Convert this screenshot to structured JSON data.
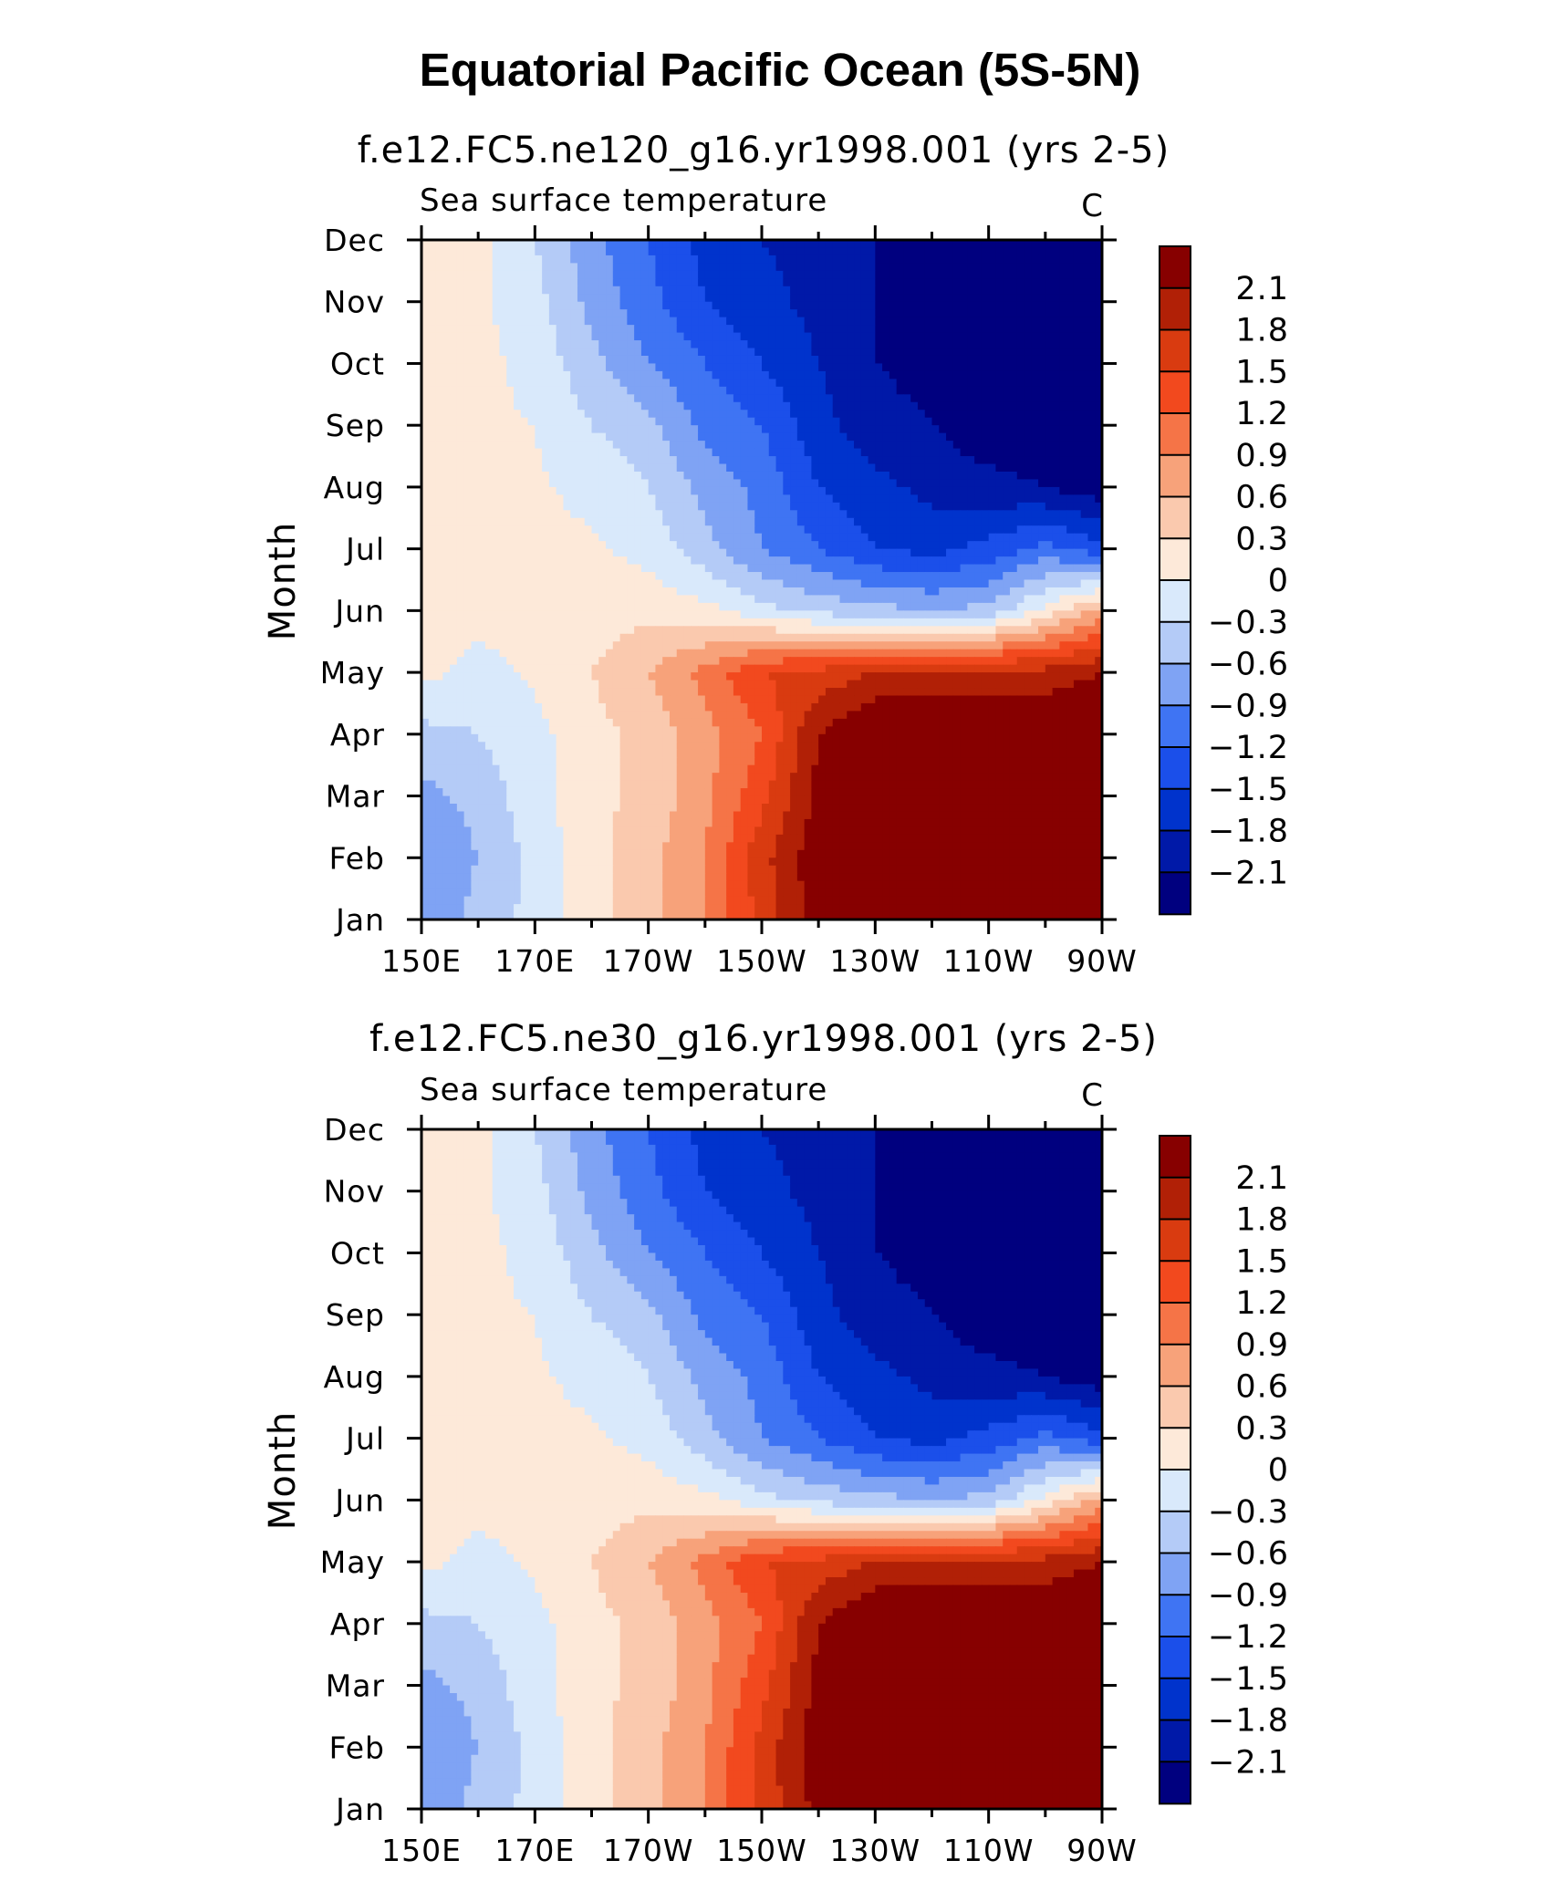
{
  "title": "Equatorial Pacific Ocean (5S-5N)",
  "colors": {
    "contour_fills": [
      "#00007f",
      "#0019a8",
      "#0033cc",
      "#1b4fea",
      "#3f74f3",
      "#7fa3f4",
      "#b4cbf7",
      "#d9e9fb",
      "#fde9d9",
      "#fac9ae",
      "#f7a27a",
      "#f57447",
      "#f2491e",
      "#d93b10",
      "#b12006",
      "#870000"
    ]
  },
  "chart_data": [
    {
      "type": "heatmap",
      "title": "f.e12.FC5.ne120_g16.yr1998.001 (yrs 2-5)",
      "subtitle_left": "Sea surface temperature",
      "subtitle_right": "C",
      "ylabel": "Month",
      "x_ticks": [
        "150E",
        "170E",
        "170W",
        "150W",
        "130W",
        "110W",
        "90W"
      ],
      "y_ticks": [
        "Jan",
        "Feb",
        "Mar",
        "Apr",
        "May",
        "Jun",
        "Jul",
        "Aug",
        "Sep",
        "Oct",
        "Nov",
        "Dec"
      ],
      "colorbar_labels": [
        "2.1",
        "1.8",
        "1.5",
        "1.2",
        "0.9",
        "0.6",
        "0.3",
        "0",
        "−0.3",
        "−0.6",
        "−0.9",
        "−1.2",
        "−1.5",
        "−1.8",
        "−2.1"
      ],
      "contour_levels": [
        -2.1,
        -1.8,
        -1.5,
        -1.2,
        -0.9,
        -0.6,
        -0.3,
        0,
        0.3,
        0.6,
        0.9,
        1.2,
        1.5,
        1.8,
        2.1
      ],
      "grid_x": [
        150,
        160,
        170,
        180,
        190,
        200,
        210,
        220,
        230,
        240,
        250,
        260,
        270
      ],
      "grid_values": [
        [
          -0.8,
          -0.5,
          -0.2,
          0.2,
          0.5,
          0.9,
          1.6,
          2.3,
          2.6,
          2.6,
          2.6,
          2.6,
          2.6
        ],
        [
          -0.9,
          -0.6,
          -0.2,
          0.2,
          0.5,
          0.9,
          1.7,
          2.3,
          2.6,
          2.6,
          2.6,
          2.6,
          2.6
        ],
        [
          -0.7,
          -0.5,
          -0.1,
          0.2,
          0.4,
          0.8,
          1.4,
          2.2,
          2.6,
          2.6,
          2.6,
          2.6,
          2.6
        ],
        [
          -0.4,
          -0.3,
          -0.1,
          0.2,
          0.4,
          0.8,
          1.2,
          2.1,
          2.5,
          2.5,
          2.5,
          2.5,
          2.5
        ],
        [
          0.1,
          -0.1,
          0.05,
          0.3,
          0.6,
          1.0,
          1.5,
          1.6,
          1.8,
          1.9,
          1.9,
          1.9,
          2.1
        ],
        [
          0.1,
          0.1,
          0.1,
          0.15,
          0.2,
          0.1,
          -0.2,
          -0.4,
          -0.5,
          -0.6,
          -0.5,
          0.1,
          0.7
        ],
        [
          0.1,
          0.1,
          0.1,
          0.05,
          -0.1,
          -0.5,
          -0.9,
          -1.2,
          -1.5,
          -1.6,
          -1.4,
          -1.1,
          -1.4
        ],
        [
          0.1,
          0.05,
          0.05,
          -0.1,
          -0.3,
          -0.7,
          -1.0,
          -1.5,
          -1.7,
          -1.9,
          -2.0,
          -2.1,
          -2.3
        ],
        [
          0.1,
          0.05,
          0.0,
          -0.3,
          -0.5,
          -1.0,
          -1.2,
          -1.7,
          -2.0,
          -2.1,
          -2.3,
          -2.3,
          -2.4
        ],
        [
          0.15,
          0.1,
          -0.1,
          -0.5,
          -0.9,
          -1.2,
          -1.5,
          -1.8,
          -2.1,
          -2.2,
          -2.3,
          -2.4,
          -2.4
        ],
        [
          0.2,
          0.05,
          -0.2,
          -0.7,
          -1.1,
          -1.5,
          -1.7,
          -1.9,
          -2.1,
          -2.3,
          -2.3,
          -2.4,
          -2.4
        ],
        [
          0.3,
          0.1,
          -0.3,
          -0.8,
          -1.2,
          -1.6,
          -1.8,
          -1.9,
          -2.1,
          -2.2,
          -2.3,
          -2.3,
          -2.2
        ]
      ]
    },
    {
      "type": "heatmap",
      "title": "f.e12.FC5.ne30_g16.yr1998.001 (yrs 2-5)",
      "subtitle_left": "Sea surface temperature",
      "subtitle_right": "C",
      "ylabel": "Month",
      "x_ticks": [
        "150E",
        "170E",
        "170W",
        "150W",
        "130W",
        "110W",
        "90W"
      ],
      "y_ticks": [
        "Jan",
        "Feb",
        "Mar",
        "Apr",
        "May",
        "Jun",
        "Jul",
        "Aug",
        "Sep",
        "Oct",
        "Nov",
        "Dec"
      ],
      "colorbar_labels": [
        "2.1",
        "1.8",
        "1.5",
        "1.2",
        "0.9",
        "0.6",
        "0.3",
        "0",
        "−0.3",
        "−0.6",
        "−0.9",
        "−1.2",
        "−1.5",
        "−1.8",
        "−2.1"
      ],
      "contour_levels": [
        -2.1,
        -1.8,
        -1.5,
        -1.2,
        -0.9,
        -0.6,
        -0.3,
        0,
        0.3,
        0.6,
        0.9,
        1.2,
        1.5,
        1.8,
        2.1
      ],
      "grid_x": [
        150,
        160,
        170,
        180,
        190,
        200,
        210,
        220,
        230,
        240,
        250,
        260,
        270
      ],
      "grid_values": [
        [
          -0.8,
          -0.5,
          -0.2,
          0.2,
          0.5,
          0.9,
          1.6,
          2.2,
          2.6,
          2.6,
          2.6,
          2.6,
          2.6
        ],
        [
          -0.9,
          -0.6,
          -0.2,
          0.2,
          0.5,
          0.9,
          1.6,
          2.3,
          2.6,
          2.6,
          2.6,
          2.6,
          2.6
        ],
        [
          -0.7,
          -0.5,
          -0.1,
          0.2,
          0.4,
          0.8,
          1.4,
          2.2,
          2.6,
          2.6,
          2.6,
          2.6,
          2.6
        ],
        [
          -0.4,
          -0.3,
          -0.1,
          0.2,
          0.4,
          0.8,
          1.2,
          2.1,
          2.5,
          2.5,
          2.5,
          2.5,
          2.5
        ],
        [
          0.1,
          -0.1,
          0.05,
          0.3,
          0.6,
          1.0,
          1.5,
          1.6,
          1.8,
          1.9,
          1.9,
          1.9,
          2.1
        ],
        [
          0.1,
          0.1,
          0.1,
          0.15,
          0.2,
          0.1,
          -0.2,
          -0.4,
          -0.5,
          -0.6,
          -0.5,
          0.1,
          0.7
        ],
        [
          0.1,
          0.1,
          0.1,
          0.05,
          -0.1,
          -0.5,
          -0.9,
          -1.2,
          -1.5,
          -1.6,
          -1.4,
          -1.1,
          -1.4
        ],
        [
          0.1,
          0.05,
          0.05,
          -0.1,
          -0.3,
          -0.7,
          -1.0,
          -1.5,
          -1.7,
          -1.9,
          -2.0,
          -2.1,
          -2.3
        ],
        [
          0.1,
          0.05,
          0.0,
          -0.3,
          -0.5,
          -1.0,
          -1.2,
          -1.7,
          -2.0,
          -2.1,
          -2.3,
          -2.3,
          -2.4
        ],
        [
          0.15,
          0.1,
          -0.1,
          -0.5,
          -0.9,
          -1.2,
          -1.5,
          -1.8,
          -2.1,
          -2.2,
          -2.3,
          -2.4,
          -2.4
        ],
        [
          0.2,
          0.05,
          -0.2,
          -0.7,
          -1.1,
          -1.5,
          -1.7,
          -1.9,
          -2.1,
          -2.3,
          -2.3,
          -2.4,
          -2.4
        ],
        [
          0.3,
          0.1,
          -0.3,
          -0.8,
          -1.2,
          -1.6,
          -1.8,
          -1.9,
          -2.1,
          -2.2,
          -2.3,
          -2.3,
          -2.2
        ]
      ]
    }
  ]
}
